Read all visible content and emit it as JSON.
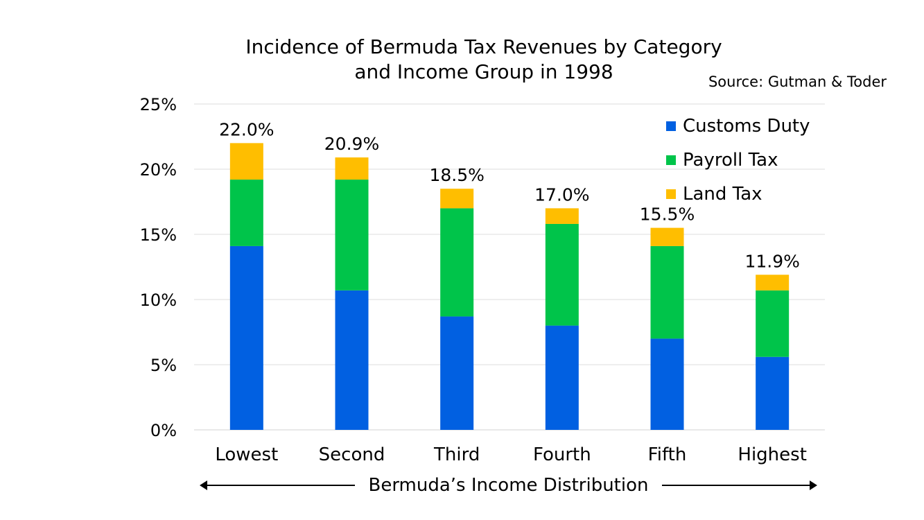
{
  "chart_data": {
    "type": "bar",
    "stacked": true,
    "title": "Incidence of Bermuda Tax Revenues by Category and Income Group in 1998",
    "title_lines": [
      "Incidence of Bermuda Tax Revenues by Category",
      "and Income Group in 1998"
    ],
    "source": "Source: Gutman & Toder",
    "xlabel": "Bermuda’s Income Distribution",
    "ylabel": "",
    "ylim": [
      0,
      25
    ],
    "yticks": [
      0,
      5,
      10,
      15,
      20,
      25
    ],
    "ytick_labels": [
      "0%",
      "5%",
      "10%",
      "15%",
      "20%",
      "25%"
    ],
    "grid": true,
    "legend_position": "top-right",
    "categories": [
      "Lowest",
      "Second",
      "Third",
      "Fourth",
      "Fifth",
      "Highest"
    ],
    "series": [
      {
        "name": "Customs Duty",
        "color": "#0160e1",
        "values": [
          14.1,
          10.7,
          8.7,
          8.0,
          7.0,
          5.6
        ]
      },
      {
        "name": "Payroll Tax",
        "color": "#00c44a",
        "values": [
          5.1,
          8.5,
          8.3,
          7.8,
          7.1,
          5.1
        ]
      },
      {
        "name": "Land Tax",
        "color": "#ffbe00",
        "values": [
          2.8,
          1.7,
          1.5,
          1.2,
          1.4,
          1.2
        ]
      }
    ],
    "totals": [
      22.0,
      20.9,
      18.5,
      17.0,
      15.5,
      11.9
    ],
    "total_labels": [
      "22.0%",
      "20.9%",
      "18.5%",
      "17.0%",
      "15.5%",
      "11.9%"
    ]
  }
}
